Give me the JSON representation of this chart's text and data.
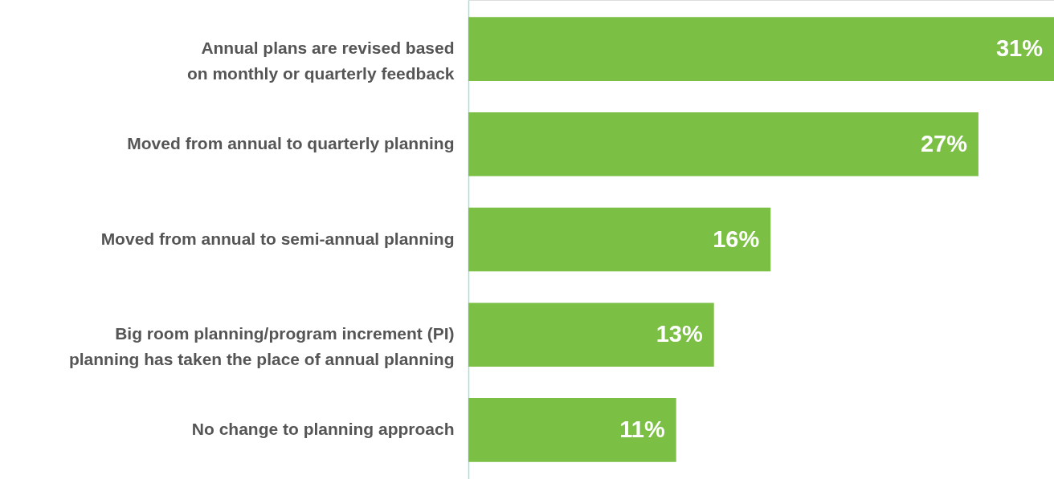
{
  "chart_data": {
    "type": "bar",
    "orientation": "horizontal",
    "categories": [
      "Annual plans are revised based on monthly or quarterly feedback",
      "Moved from annual to quarterly planning",
      "Moved from annual to semi-annual planning",
      "Big room planning/program increment (PI) planning has taken the place of annual planning",
      "No change to planning approach"
    ],
    "values": [
      31,
      27,
      16,
      13,
      11
    ],
    "value_labels": [
      "31%",
      "27%",
      "16%",
      "13%",
      "11%"
    ],
    "color": "#7bbf44",
    "grid": false
  }
}
